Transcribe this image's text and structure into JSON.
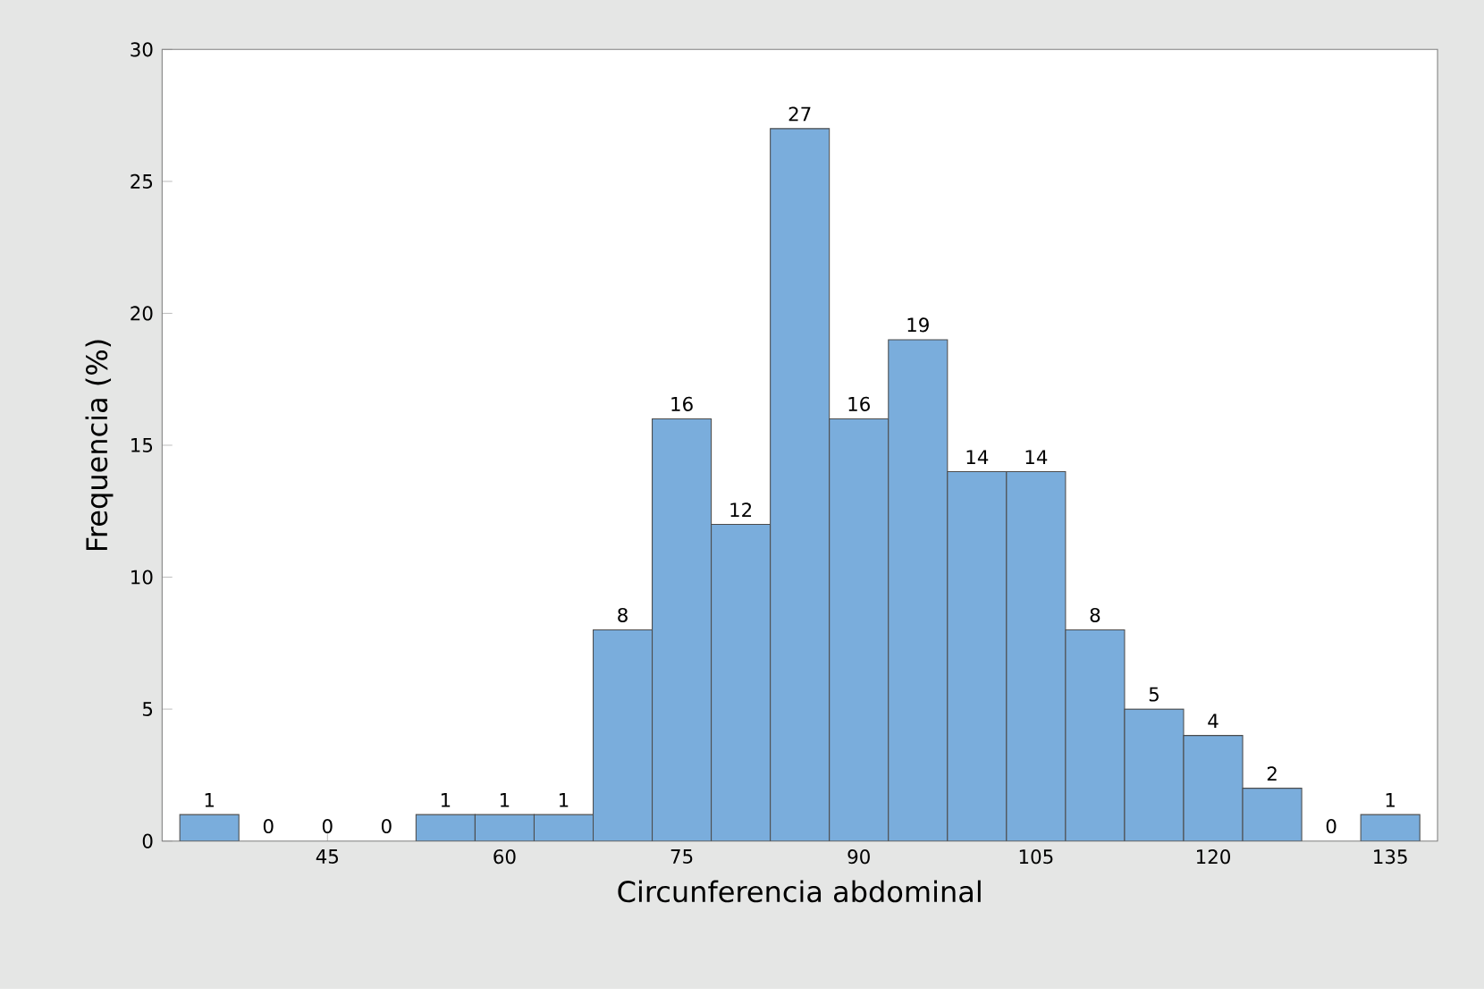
{
  "chart_data": {
    "type": "histogram",
    "xlabel": "Circunferencia abdominal",
    "ylabel": "Frequencia (%)",
    "bins": [
      32.5,
      37.5,
      42.5,
      47.5,
      52.5,
      57.5,
      62.5,
      67.5,
      72.5,
      77.5,
      82.5,
      87.5,
      92.5,
      97.5,
      102.5,
      107.5,
      112.5,
      117.5,
      122.5,
      127.5,
      132.5,
      137.5
    ],
    "values": [
      1,
      0,
      0,
      0,
      1,
      1,
      1,
      8,
      16,
      12,
      27,
      16,
      19,
      14,
      14,
      8,
      5,
      4,
      2,
      0,
      1
    ],
    "color": "#7aaddc",
    "xlim": [
      31,
      139
    ],
    "xticks": [
      45,
      60,
      75,
      90,
      105,
      120,
      135
    ],
    "ylim": [
      0,
      30
    ],
    "yticks": [
      0,
      5,
      10,
      15,
      20,
      25,
      30
    ],
    "data_labels": true,
    "grid": false
  }
}
